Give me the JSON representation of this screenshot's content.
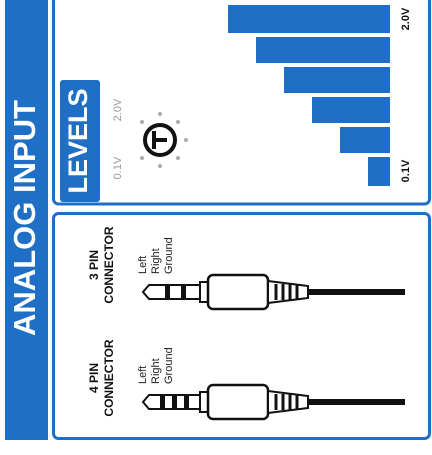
{
  "header": {
    "title": "ANALOG INPUT"
  },
  "levels": {
    "title": "LEVELS",
    "knob": {
      "min_label": "0.1V",
      "max_label": "2.0V"
    },
    "meter": {
      "max_label": "2.0V",
      "min_label": "0.1V"
    }
  },
  "connectors": [
    {
      "name": [
        "3 PIN",
        "CONNECTOR"
      ],
      "pins": [
        "Left",
        "Right",
        "Ground"
      ]
    },
    {
      "name": [
        "4 PIN",
        "CONNECTOR"
      ],
      "pins": [
        "Left",
        "Right",
        "Ground"
      ]
    }
  ]
}
